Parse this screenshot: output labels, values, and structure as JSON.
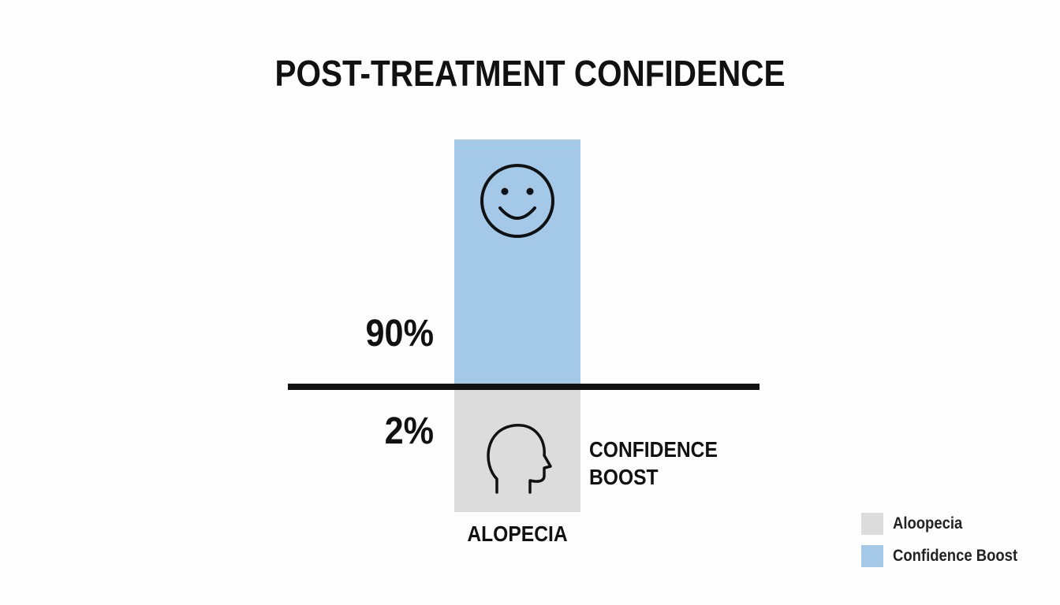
{
  "title": "POST-TREATMENT CONFIDENCE",
  "labels": {
    "upper_value": "90%",
    "lower_value": "2%",
    "side_label": "CONFIDENCE BOOST",
    "category": "ALOPECIA"
  },
  "legend": {
    "items": [
      {
        "name": "Aloopecia",
        "color": "#dcdcdc"
      },
      {
        "name": "Confidence Boost",
        "color": "#a4c9e8"
      }
    ]
  }
}
